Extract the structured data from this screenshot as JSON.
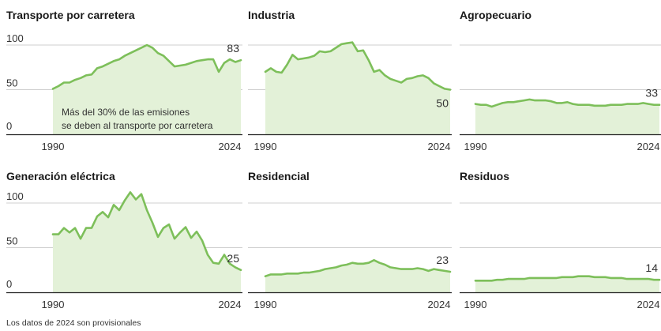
{
  "footnote": "Los datos de 2024 son provisionales",
  "colors": {
    "line": "#7dbf5a",
    "fill": "#e3f1d8",
    "axis": "#222222",
    "grid": "#cfcfcf"
  },
  "chart_data": [
    {
      "type": "area",
      "title": "Transporte por carretera",
      "ylim": [
        0,
        110
      ],
      "yticks": [
        "100",
        "50",
        "0"
      ],
      "xticks": [
        "1990",
        "2024"
      ],
      "end_label": "83",
      "annotation": [
        "Más del 30% de las emisiones",
        "se deben al transporte por carretera"
      ],
      "x": [
        1990,
        1991,
        1992,
        1993,
        1994,
        1995,
        1996,
        1997,
        1998,
        1999,
        2000,
        2001,
        2002,
        2003,
        2004,
        2005,
        2006,
        2007,
        2008,
        2009,
        2010,
        2011,
        2012,
        2013,
        2014,
        2015,
        2016,
        2017,
        2018,
        2019,
        2020,
        2021,
        2022,
        2023,
        2024
      ],
      "values": [
        51,
        54,
        58,
        58,
        61,
        63,
        66,
        67,
        74,
        76,
        79,
        82,
        84,
        88,
        91,
        94,
        97,
        100,
        97,
        91,
        88,
        82,
        76,
        77,
        78,
        80,
        82,
        83,
        84,
        84,
        70,
        80,
        84,
        81,
        83
      ]
    },
    {
      "type": "area",
      "title": "Industria",
      "ylim": [
        0,
        110
      ],
      "yticks": [],
      "xticks": [
        "1990",
        "2024"
      ],
      "end_label": "50",
      "x": [
        1990,
        1991,
        1992,
        1993,
        1994,
        1995,
        1996,
        1997,
        1998,
        1999,
        2000,
        2001,
        2002,
        2003,
        2004,
        2005,
        2006,
        2007,
        2008,
        2009,
        2010,
        2011,
        2012,
        2013,
        2014,
        2015,
        2016,
        2017,
        2018,
        2019,
        2020,
        2021,
        2022,
        2023,
        2024
      ],
      "values": [
        70,
        74,
        70,
        69,
        78,
        89,
        84,
        85,
        86,
        88,
        93,
        92,
        93,
        97,
        101,
        102,
        103,
        93,
        94,
        83,
        70,
        72,
        66,
        62,
        60,
        58,
        62,
        63,
        65,
        66,
        63,
        57,
        54,
        51,
        50
      ]
    },
    {
      "type": "area",
      "title": "Agropecuario",
      "ylim": [
        0,
        110
      ],
      "yticks": [],
      "xticks": [
        "1990",
        "2024"
      ],
      "end_label": "33",
      "x": [
        1990,
        1991,
        1992,
        1993,
        1994,
        1995,
        1996,
        1997,
        1998,
        1999,
        2000,
        2001,
        2002,
        2003,
        2004,
        2005,
        2006,
        2007,
        2008,
        2009,
        2010,
        2011,
        2012,
        2013,
        2014,
        2015,
        2016,
        2017,
        2018,
        2019,
        2020,
        2021,
        2022,
        2023,
        2024
      ],
      "values": [
        34,
        33,
        33,
        31,
        33,
        35,
        36,
        36,
        37,
        38,
        39,
        38,
        38,
        38,
        37,
        35,
        35,
        36,
        34,
        33,
        33,
        33,
        32,
        32,
        32,
        33,
        33,
        33,
        34,
        34,
        34,
        35,
        34,
        33,
        33
      ]
    },
    {
      "type": "area",
      "title": "Generación eléctrica",
      "ylim": [
        0,
        120
      ],
      "yticks": [
        "100",
        "50",
        "0"
      ],
      "xticks": [
        "1990",
        "2024"
      ],
      "end_label": "25",
      "x": [
        1990,
        1991,
        1992,
        1993,
        1994,
        1995,
        1996,
        1997,
        1998,
        1999,
        2000,
        2001,
        2002,
        2003,
        2004,
        2005,
        2006,
        2007,
        2008,
        2009,
        2010,
        2011,
        2012,
        2013,
        2014,
        2015,
        2016,
        2017,
        2018,
        2019,
        2020,
        2021,
        2022,
        2023,
        2024
      ],
      "values": [
        65,
        65,
        72,
        67,
        72,
        60,
        72,
        72,
        85,
        90,
        84,
        98,
        92,
        103,
        112,
        104,
        110,
        92,
        78,
        62,
        72,
        76,
        60,
        67,
        73,
        61,
        68,
        58,
        42,
        33,
        32,
        42,
        32,
        28,
        25
      ]
    },
    {
      "type": "area",
      "title": "Residencial",
      "ylim": [
        0,
        110
      ],
      "yticks": [],
      "xticks": [
        "1990",
        "2024"
      ],
      "end_label": "23",
      "x": [
        1990,
        1991,
        1992,
        1993,
        1994,
        1995,
        1996,
        1997,
        1998,
        1999,
        2000,
        2001,
        2002,
        2003,
        2004,
        2005,
        2006,
        2007,
        2008,
        2009,
        2010,
        2011,
        2012,
        2013,
        2014,
        2015,
        2016,
        2017,
        2018,
        2019,
        2020,
        2021,
        2022,
        2023,
        2024
      ],
      "values": [
        18,
        20,
        20,
        20,
        21,
        21,
        21,
        22,
        22,
        23,
        24,
        26,
        27,
        28,
        30,
        31,
        33,
        32,
        32,
        33,
        36,
        33,
        31,
        28,
        27,
        26,
        26,
        26,
        27,
        26,
        24,
        26,
        25,
        24,
        23
      ]
    },
    {
      "type": "area",
      "title": "Residuos",
      "ylim": [
        0,
        110
      ],
      "yticks": [],
      "xticks": [
        "1990",
        "2024"
      ],
      "end_label": "14",
      "x": [
        1990,
        1991,
        1992,
        1993,
        1994,
        1995,
        1996,
        1997,
        1998,
        1999,
        2000,
        2001,
        2002,
        2003,
        2004,
        2005,
        2006,
        2007,
        2008,
        2009,
        2010,
        2011,
        2012,
        2013,
        2014,
        2015,
        2016,
        2017,
        2018,
        2019,
        2020,
        2021,
        2022,
        2023,
        2024
      ],
      "values": [
        13,
        13,
        13,
        13,
        14,
        14,
        15,
        15,
        15,
        15,
        16,
        16,
        16,
        16,
        16,
        16,
        17,
        17,
        17,
        18,
        18,
        18,
        17,
        17,
        17,
        16,
        16,
        16,
        15,
        15,
        15,
        15,
        15,
        14,
        14
      ]
    }
  ]
}
